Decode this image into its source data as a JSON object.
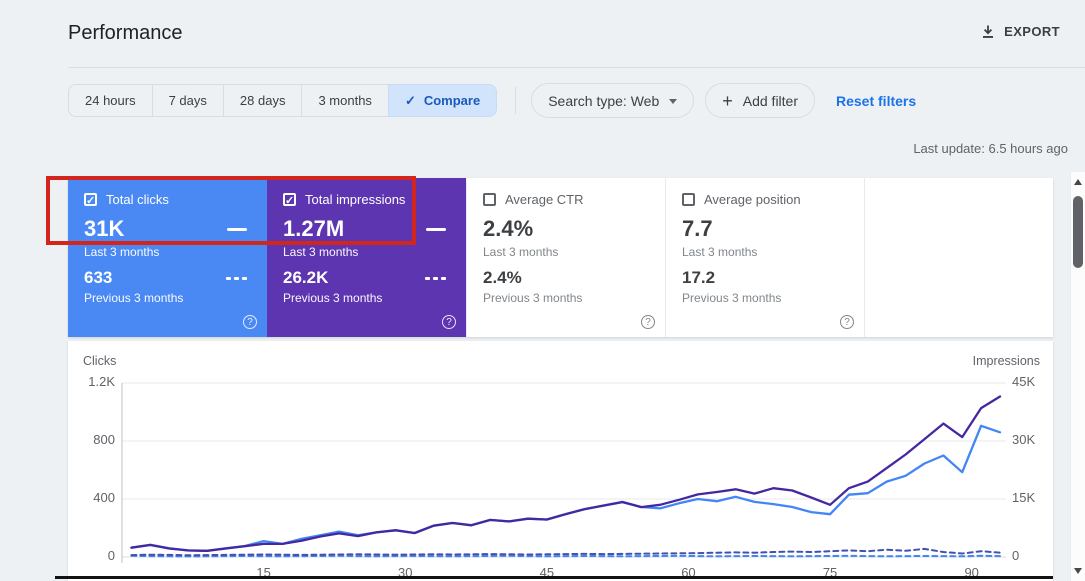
{
  "header": {
    "title": "Performance",
    "export_label": "EXPORT",
    "last_update": "Last update: 6.5 hours ago"
  },
  "toolbar": {
    "tabs": [
      {
        "label": "24 hours",
        "selected": false
      },
      {
        "label": "7 days",
        "selected": false
      },
      {
        "label": "28 days",
        "selected": false
      },
      {
        "label": "3 months",
        "selected": false
      },
      {
        "label": "Compare",
        "selected": true,
        "check": "✓"
      }
    ],
    "search_type_label": "Search type: Web",
    "add_filter_plus": "+",
    "add_filter_label": "Add filter",
    "reset_filters_label": "Reset filters"
  },
  "cards": [
    {
      "title": "Total clicks",
      "checked": true,
      "check_glyph": "✓",
      "color": "#4a89f4",
      "current_value": "31K",
      "current_label": "Last 3 months",
      "previous_value": "633",
      "previous_label": "Previous 3 months",
      "help_glyph": "?"
    },
    {
      "title": "Total impressions",
      "checked": true,
      "check_glyph": "✓",
      "color": "#5e35b1",
      "current_value": "1.27M",
      "current_label": "Last 3 months",
      "previous_value": "26.2K",
      "previous_label": "Previous 3 months",
      "help_glyph": "?"
    },
    {
      "title": "Average CTR",
      "checked": false,
      "check_glyph": "",
      "color": "",
      "current_value": "2.4%",
      "current_label": "Last 3 months",
      "previous_value": "2.4%",
      "previous_label": "Previous 3 months",
      "help_glyph": "?"
    },
    {
      "title": "Average position",
      "checked": false,
      "check_glyph": "",
      "color": "",
      "current_value": "7.7",
      "current_label": "Last 3 months",
      "previous_value": "17.2",
      "previous_label": "Previous 3 months",
      "help_glyph": "?"
    }
  ],
  "annotation": {
    "shape": "rectangle",
    "color": "#d2261d",
    "around": "Total clicks and Total impressions current-period values"
  },
  "chart_data": {
    "type": "line",
    "grid": true,
    "legend_position": "none",
    "left_axis": {
      "label": "Clicks",
      "range": [
        0,
        1200
      ],
      "ticks": [
        "0",
        "400",
        "800",
        "1.2K"
      ]
    },
    "right_axis": {
      "label": "Impressions",
      "range": [
        0,
        45000
      ],
      "ticks": [
        "0",
        "15K",
        "30K",
        "45K"
      ]
    },
    "x_axis": {
      "unit": "days",
      "range": [
        0,
        93
      ],
      "ticks": [
        15,
        30,
        45,
        60,
        75,
        90
      ]
    },
    "x": [
      1,
      3,
      5,
      7,
      9,
      11,
      13,
      15,
      17,
      19,
      21,
      23,
      25,
      27,
      29,
      31,
      33,
      35,
      37,
      39,
      41,
      43,
      45,
      47,
      49,
      51,
      53,
      55,
      57,
      59,
      61,
      63,
      65,
      67,
      69,
      71,
      73,
      75,
      77,
      79,
      81,
      83,
      85,
      87,
      89,
      91,
      93
    ],
    "series": [
      {
        "name": "Total clicks (last 3 months)",
        "axis": "left",
        "style": "solid",
        "color": "#4285f4",
        "values": [
          65,
          85,
          60,
          45,
          42,
          60,
          75,
          110,
          90,
          125,
          150,
          175,
          150,
          170,
          185,
          165,
          215,
          235,
          220,
          255,
          245,
          265,
          258,
          295,
          330,
          355,
          380,
          345,
          335,
          370,
          400,
          385,
          415,
          380,
          365,
          345,
          310,
          295,
          430,
          440,
          520,
          560,
          645,
          700,
          585,
          905,
          860
        ]
      },
      {
        "name": "Total impressions (last 3 months)",
        "axis": "right",
        "style": "solid",
        "color": "#4527a0",
        "values": [
          2400,
          3100,
          2200,
          1700,
          1600,
          2200,
          2800,
          3400,
          3400,
          4200,
          5300,
          6100,
          5400,
          6400,
          6900,
          6200,
          8100,
          8800,
          8200,
          9600,
          9200,
          9900,
          9700,
          11100,
          12400,
          13300,
          14200,
          12900,
          13500,
          14800,
          16200,
          16800,
          17500,
          16400,
          17800,
          17200,
          15400,
          13500,
          17800,
          19500,
          23000,
          26500,
          30500,
          34500,
          31000,
          38500,
          41500
        ]
      },
      {
        "name": "Total clicks (previous 3 months)",
        "axis": "left",
        "style": "dashed",
        "color": "#4285f4",
        "values": [
          8,
          6,
          5,
          4,
          5,
          6,
          7,
          6,
          5,
          6,
          7,
          8,
          6,
          5,
          6,
          7,
          6,
          5,
          6,
          7,
          8,
          6,
          5,
          6,
          7,
          6,
          5,
          6,
          7,
          8,
          6,
          5,
          6,
          7,
          6,
          5,
          6,
          7,
          8,
          6,
          5,
          6,
          7,
          6,
          5,
          8,
          6
        ]
      },
      {
        "name": "Total impressions (previous 3 months)",
        "axis": "right",
        "style": "dashed",
        "color": "#4350af",
        "values": [
          500,
          600,
          550,
          450,
          500,
          550,
          600,
          650,
          600,
          550,
          600,
          650,
          700,
          650,
          600,
          650,
          700,
          650,
          700,
          750,
          700,
          650,
          700,
          750,
          800,
          750,
          800,
          850,
          900,
          950,
          1000,
          1100,
          1200,
          1100,
          1300,
          1400,
          1300,
          1500,
          1700,
          1500,
          1900,
          1600,
          2100,
          1300,
          900,
          1500,
          1100
        ]
      }
    ]
  }
}
